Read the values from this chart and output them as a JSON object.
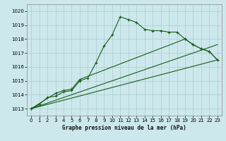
{
  "title": "Graphe pression niveau de la mer (hPa)",
  "bg_color": "#cce8ec",
  "grid_color": "#aacccc",
  "line_color": "#1a5c1a",
  "xlim": [
    -0.5,
    23.5
  ],
  "ylim": [
    1012.5,
    1020.5
  ],
  "yticks": [
    1013,
    1014,
    1015,
    1016,
    1017,
    1018,
    1019,
    1020
  ],
  "xticks": [
    0,
    1,
    2,
    3,
    4,
    5,
    6,
    7,
    8,
    9,
    10,
    11,
    12,
    13,
    14,
    15,
    16,
    17,
    18,
    19,
    20,
    21,
    22,
    23
  ],
  "series1_x": [
    0,
    1,
    2,
    3,
    4,
    5,
    6,
    7,
    8,
    9,
    10,
    11,
    12,
    13,
    14,
    15,
    16,
    17,
    18,
    19,
    20,
    21,
    22,
    23
  ],
  "series1_y": [
    1013.0,
    1013.3,
    1013.8,
    1013.9,
    1014.2,
    1014.3,
    1015.0,
    1015.2,
    1016.3,
    1017.5,
    1018.3,
    1019.6,
    1019.4,
    1019.2,
    1018.7,
    1018.6,
    1018.6,
    1018.5,
    1018.5,
    1018.0,
    1017.6,
    1017.3,
    1017.1,
    1016.5
  ],
  "series2_x": [
    0,
    23
  ],
  "series2_y": [
    1013.0,
    1016.5
  ],
  "series3_x": [
    0,
    23
  ],
  "series3_y": [
    1013.0,
    1017.6
  ],
  "series4_x": [
    0,
    3,
    4,
    5,
    6,
    19,
    20,
    21,
    22,
    23
  ],
  "series4_y": [
    1013.0,
    1014.1,
    1014.3,
    1014.4,
    1015.1,
    1018.0,
    1017.6,
    1017.3,
    1017.1,
    1016.5
  ],
  "tick_fontsize": 5,
  "label_fontsize": 5.5
}
